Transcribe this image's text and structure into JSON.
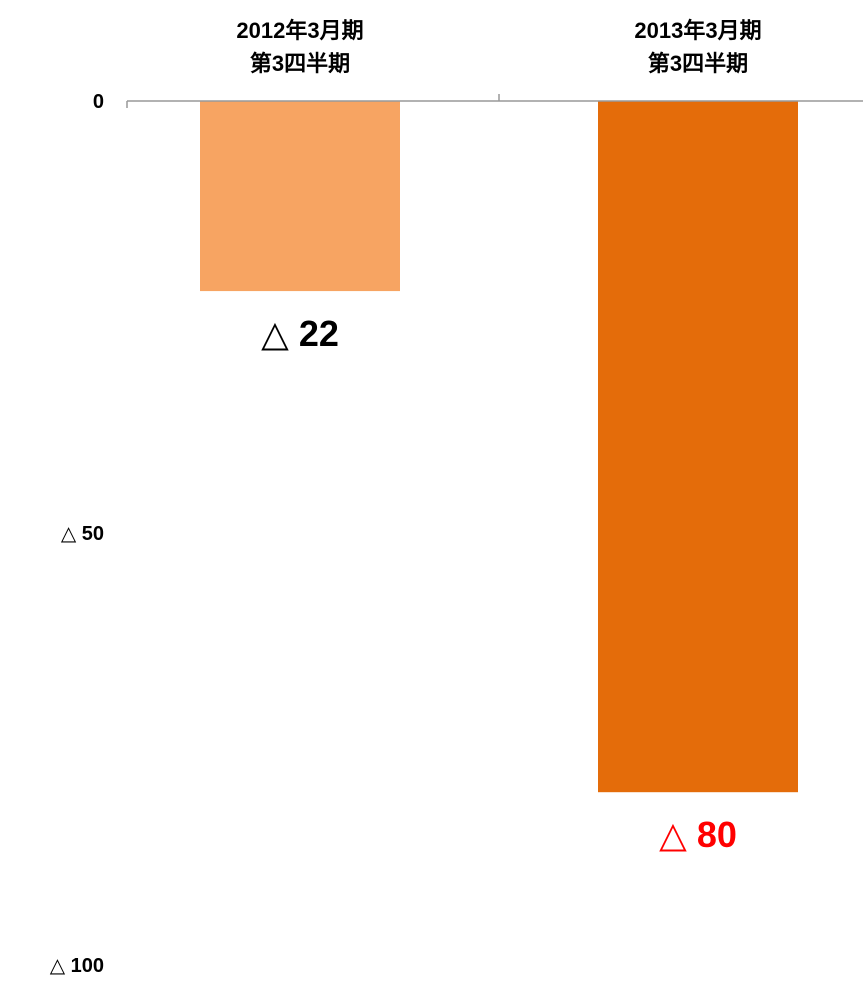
{
  "chart_data": {
    "type": "bar",
    "orientation": "vertical-down",
    "categories": [
      [
        "2012年3月期",
        "第3四半期"
      ],
      [
        "2013年3月期",
        "第3四半期"
      ]
    ],
    "values": [
      -22,
      -80
    ],
    "data_labels": [
      "△ 22",
      "△ 80"
    ],
    "bar_colors": [
      "#F7A462",
      "#E46C0A"
    ],
    "label_colors": [
      "#000000",
      "#FF0000"
    ],
    "y_ticks": [
      {
        "value": 0,
        "label": "0"
      },
      {
        "value": -50,
        "label": "△ 50"
      },
      {
        "value": -100,
        "label": "△ 100"
      }
    ],
    "ylim": [
      -100,
      0
    ],
    "grid": false,
    "axis_color": "#999999"
  }
}
